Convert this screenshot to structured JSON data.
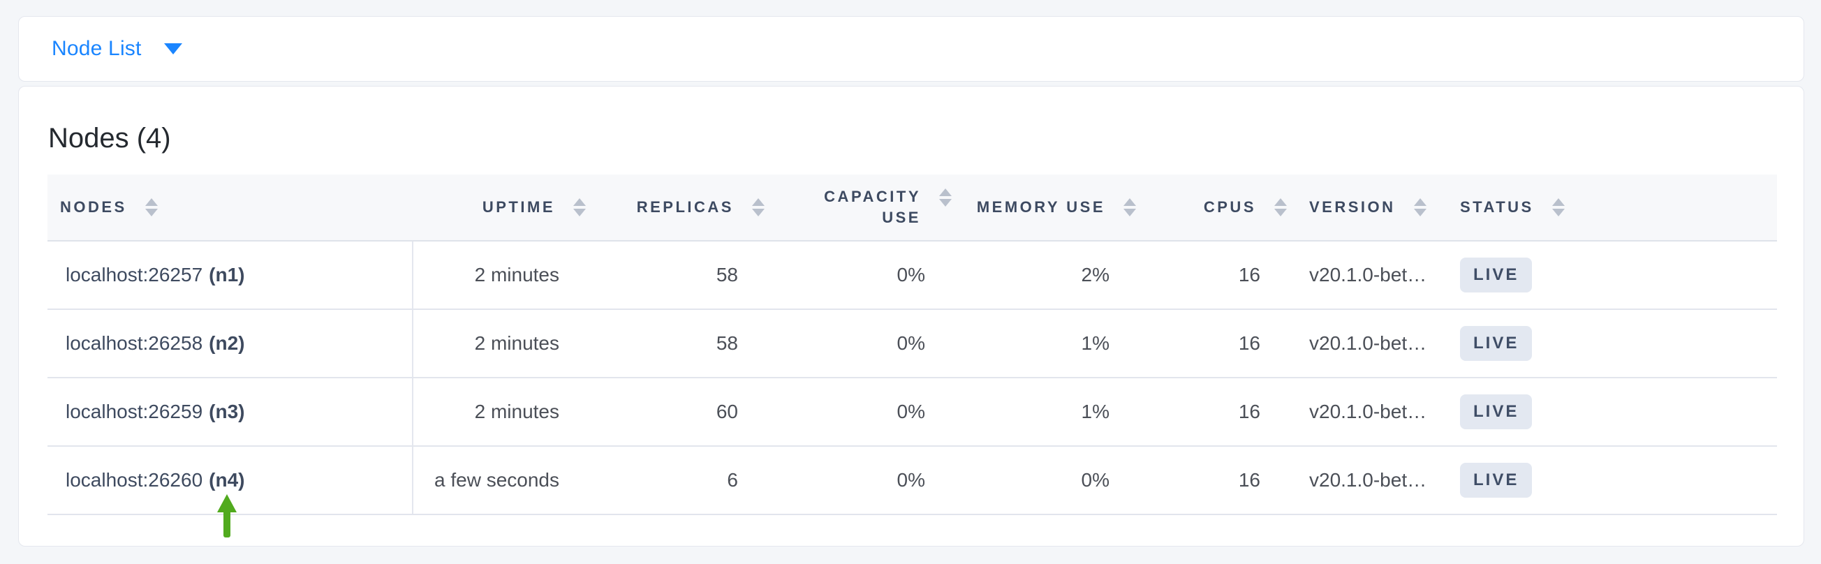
{
  "view_selector": {
    "label": "Node List"
  },
  "page": {
    "title": "Nodes (4)"
  },
  "table": {
    "columns": [
      {
        "key": "nodes",
        "label": "NODES"
      },
      {
        "key": "uptime",
        "label": "UPTIME"
      },
      {
        "key": "replicas",
        "label": "REPLICAS"
      },
      {
        "key": "capacity_use",
        "label": "CAPACITY USE"
      },
      {
        "key": "memory_use",
        "label": "MEMORY USE"
      },
      {
        "key": "cpus",
        "label": "CPUS"
      },
      {
        "key": "version",
        "label": "VERSION"
      },
      {
        "key": "status",
        "label": "STATUS"
      }
    ],
    "rows": [
      {
        "address": "localhost:26257",
        "node_id": "(n1)",
        "uptime": "2 minutes",
        "replicas": "58",
        "capacity_use": "0%",
        "memory_use": "2%",
        "cpus": "16",
        "version": "v20.1.0-bet…",
        "status": "LIVE"
      },
      {
        "address": "localhost:26258",
        "node_id": "(n2)",
        "uptime": "2 minutes",
        "replicas": "58",
        "capacity_use": "0%",
        "memory_use": "1%",
        "cpus": "16",
        "version": "v20.1.0-bet…",
        "status": "LIVE"
      },
      {
        "address": "localhost:26259",
        "node_id": "(n3)",
        "uptime": "2 minutes",
        "replicas": "60",
        "capacity_use": "0%",
        "memory_use": "1%",
        "cpus": "16",
        "version": "v20.1.0-bet…",
        "status": "LIVE"
      },
      {
        "address": "localhost:26260",
        "node_id": "(n4)",
        "uptime": "a few seconds",
        "replicas": "6",
        "capacity_use": "0%",
        "memory_use": "0%",
        "cpus": "16",
        "version": "v20.1.0-bet…",
        "status": "LIVE"
      }
    ]
  },
  "annotation_arrow": {
    "color": "#51aa1e"
  },
  "colors": {
    "accent_blue": "#1a85ff",
    "page_background": "#f4f6f9",
    "header_background": "#f7f8fa",
    "header_text": "#3d4a61",
    "badge_background": "#e3e8f1",
    "badge_text": "#3f4d66"
  }
}
